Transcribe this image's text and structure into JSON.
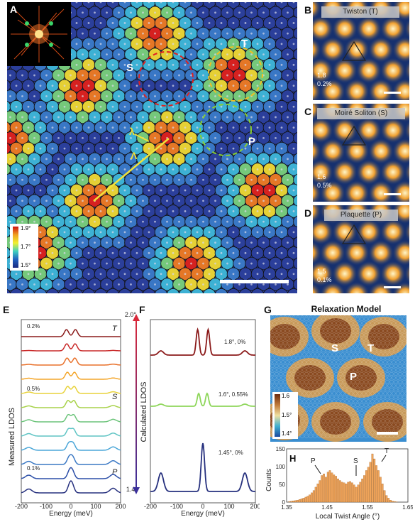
{
  "panel_a": {
    "label": "A",
    "region_labels": {
      "S": "S",
      "T": "T",
      "P": "P"
    },
    "lambda_small": "λ",
    "lambda_large": "Λ",
    "colorbar_ticks": [
      "1.9°",
      "1.7°",
      "1.5°"
    ]
  },
  "panel_b": {
    "label": "B",
    "title": "Twiston (T)",
    "angle": "1.8",
    "strain": "0.2%"
  },
  "panel_c": {
    "label": "C",
    "title": "Moiré Soliton (S)",
    "angle": "1.6",
    "strain": "0.5%"
  },
  "panel_d": {
    "label": "D",
    "title": "Plaquette (P)",
    "angle": "1.5",
    "strain": "0.1%"
  },
  "panel_e": {
    "label": "E",
    "ylabel": "Measured LDOS",
    "xlabel": "Energy (meV)",
    "xticks": [
      "-200",
      "-100",
      "0",
      "100",
      "200"
    ],
    "annotations": {
      "top": "0.2%",
      "mid": "0.5%",
      "bottom": "0.1%"
    },
    "series_labels": {
      "T": "T",
      "S": "S",
      "P": "P"
    },
    "arrow_top": "2.0°",
    "arrow_bottom": "1.4°"
  },
  "panel_f": {
    "label": "F",
    "ylabel": "Calculated LDOS",
    "xlabel": "Energy (meV)",
    "xticks": [
      "-200",
      "-100",
      "0",
      "100",
      "200"
    ],
    "curve_labels": [
      "1.8°, 0%",
      "1.6°, 0.55%",
      "1.45°, 0%"
    ]
  },
  "panel_g": {
    "label": "G",
    "title": "Relaxation Model",
    "region_labels": {
      "S": "S",
      "T": "T",
      "P": "P"
    },
    "colorbar_ticks": [
      "1.6",
      "1.5°",
      "1.4°"
    ]
  },
  "panel_h": {
    "label": "H",
    "ylabel": "Counts",
    "xlabel": "Local Twist Angle (°)",
    "xticks": [
      "1.35",
      "1.45",
      "1.55",
      "1.65"
    ],
    "yticks": [
      "0",
      "50",
      "100",
      "150"
    ],
    "peak_labels": {
      "P": "P",
      "S": "S",
      "T": "T"
    }
  },
  "chart_data": [
    {
      "type": "line",
      "id": "measured-ldos",
      "xlabel": "Energy (meV)",
      "ylabel": "Measured LDOS",
      "xlim": [
        -200,
        200
      ],
      "n_series": 12,
      "color_gradient": [
        "#8b1a1a",
        "#c92a2a",
        "#e8702a",
        "#f4a62a",
        "#e8d23a",
        "#a8d24a",
        "#6cc47a",
        "#5ec4c4",
        "#4aa6d8",
        "#3a78c4",
        "#2c4fa8",
        "#26307e"
      ]
    },
    {
      "type": "line",
      "id": "calculated-ldos",
      "xlabel": "Energy (meV)",
      "ylabel": "Calculated LDOS",
      "xlim": [
        -200,
        200
      ],
      "series": [
        {
          "name": "1.8°, 0%",
          "color": "#8b1a1a"
        },
        {
          "name": "1.6°, 0.55%",
          "color": "#8ed65a"
        },
        {
          "name": "1.45°, 0%",
          "color": "#26307e"
        }
      ]
    },
    {
      "type": "bar",
      "id": "twist-histogram",
      "xlabel": "Local Twist Angle (°)",
      "ylabel": "Counts",
      "xlim": [
        1.35,
        1.65
      ],
      "ylim": [
        0,
        160
      ],
      "bin_width": 0.005,
      "x_start": 1.355,
      "values": [
        2,
        3,
        4,
        5,
        6,
        8,
        10,
        12,
        15,
        18,
        22,
        28,
        35,
        45,
        55,
        65,
        80,
        85,
        75,
        90,
        95,
        88,
        82,
        78,
        70,
        65,
        60,
        58,
        55,
        60,
        62,
        58,
        52,
        45,
        52,
        60,
        70,
        80,
        95,
        105,
        120,
        145,
        130,
        110,
        95,
        75,
        55,
        35,
        20,
        12,
        6,
        3,
        2,
        1
      ],
      "color": "#f0a45a"
    }
  ]
}
